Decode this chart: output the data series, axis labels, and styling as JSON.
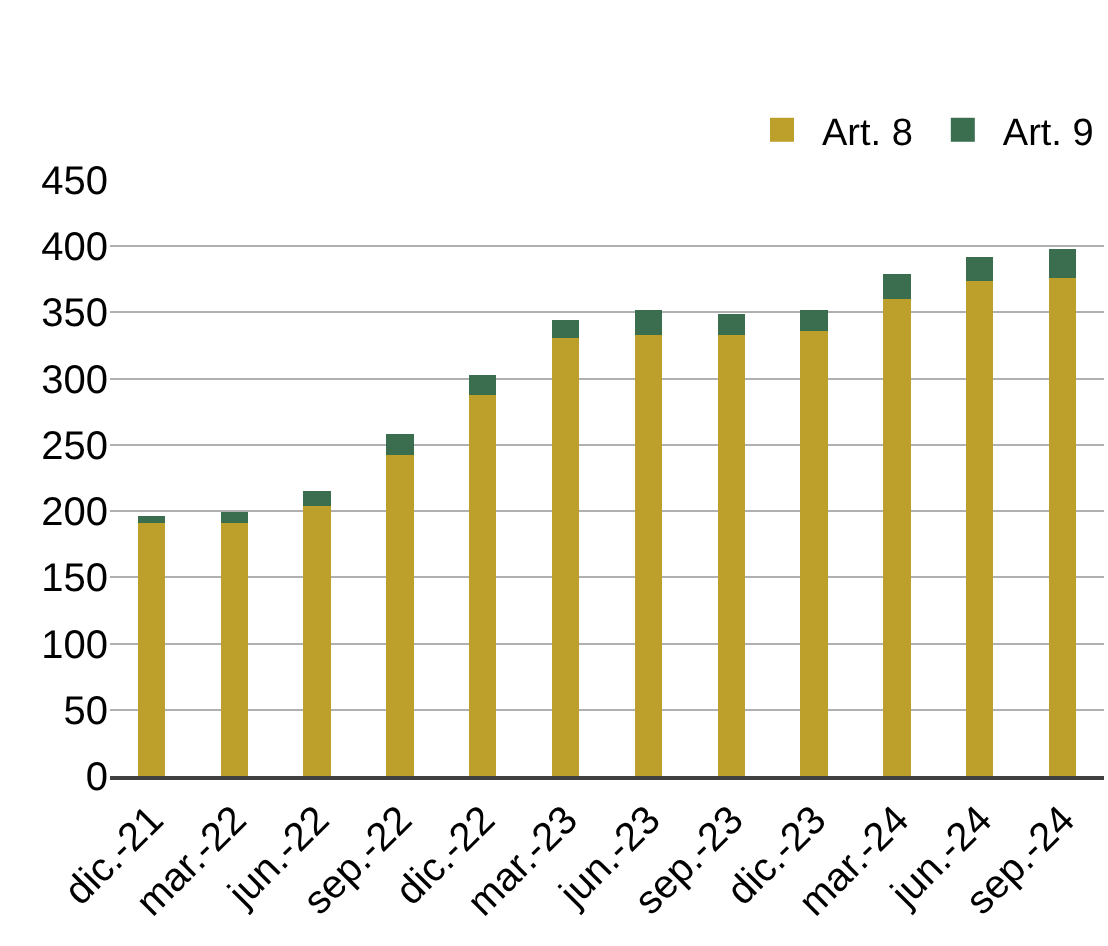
{
  "chart_data": {
    "type": "bar",
    "stacked": true,
    "categories": [
      "dic.-21",
      "mar.-22",
      "jun.-22",
      "sep.-22",
      "dic.-22",
      "mar.-23",
      "jun.-23",
      "sep.-23",
      "dic.-23",
      "mar.-24",
      "jun.-24",
      "sep.-24"
    ],
    "series": [
      {
        "name": "Art. 8",
        "color": "#bd9f2b",
        "values": [
          191,
          191,
          204,
          242,
          288,
          331,
          333,
          333,
          336,
          360,
          374,
          376
        ]
      },
      {
        "name": "Art. 9",
        "color": "#3a6e4f",
        "values": [
          5,
          8,
          11,
          16,
          15,
          13,
          19,
          16,
          16,
          19,
          18,
          22
        ]
      }
    ],
    "ylim": [
      0,
      450
    ],
    "yticks": [
      0,
      50,
      100,
      150,
      200,
      250,
      300,
      350,
      400,
      450
    ],
    "grid": "y",
    "legend": "top right"
  }
}
